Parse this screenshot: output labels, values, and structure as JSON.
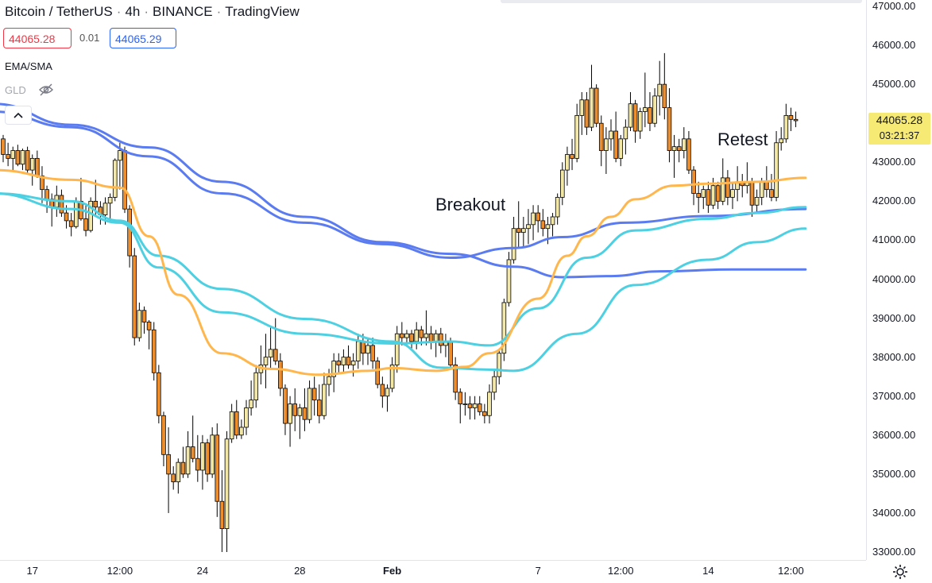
{
  "header": {
    "symbol": "Bitcoin / TetherUS",
    "interval": "4h",
    "exchange": "BINANCE",
    "source": "TradingView",
    "sell_price": "44065.28",
    "spread": "0.01",
    "buy_price": "44065.29"
  },
  "indicators": [
    {
      "label": "EMA/SMA"
    },
    {
      "label": "GLD"
    }
  ],
  "current_price": {
    "price": "44065.28",
    "countdown": "03:21:37"
  },
  "annotations": {
    "breakout": "Breakout",
    "retest": "Retest"
  },
  "colors": {
    "up_candle": "#f3e7a6",
    "down_candle": "#ee8d2c",
    "ema_orange": "#ffb74d",
    "ema_teal": "#4dd0e1",
    "sma_blue": "#5b7cf0",
    "price_label_bg": "#f6ea74"
  },
  "chart_data": {
    "type": "candlestick",
    "title": "Bitcoin / TetherUS · 4h · BINANCE",
    "ylim": [
      33000,
      47000
    ],
    "yticks": [
      "47000.00",
      "46000.00",
      "45000.00",
      "44000.00",
      "43000.00",
      "42000.00",
      "41000.00",
      "40000.00",
      "39000.00",
      "38000.00",
      "37000.00",
      "36000.00",
      "35000.00",
      "34000.00",
      "33000.00"
    ],
    "xticks": [
      {
        "label": "17",
        "i": 6
      },
      {
        "label": "12:00",
        "i": 24
      },
      {
        "label": "24",
        "i": 41
      },
      {
        "label": "28",
        "i": 61
      },
      {
        "label": "Feb",
        "i": 80,
        "bold": true
      },
      {
        "label": "7",
        "i": 110
      },
      {
        "label": "12:00",
        "i": 127
      },
      {
        "label": "14",
        "i": 145
      },
      {
        "label": "12:00",
        "i": 162
      }
    ],
    "candles": [
      [
        43600,
        43700,
        43000,
        43200
      ],
      [
        43200,
        43500,
        42900,
        43100
      ],
      [
        43100,
        43400,
        42800,
        43300
      ],
      [
        43300,
        43450,
        42900,
        42950
      ],
      [
        42950,
        43350,
        42800,
        43300
      ],
      [
        43300,
        43400,
        42700,
        42800
      ],
      [
        42800,
        43200,
        42400,
        43100
      ],
      [
        43100,
        43300,
        42600,
        42650
      ],
      [
        42650,
        42900,
        41950,
        42300
      ],
      [
        42300,
        42400,
        41700,
        42050
      ],
      [
        42050,
        42200,
        41350,
        41850
      ],
      [
        41850,
        42400,
        41600,
        42150
      ],
      [
        42150,
        42300,
        41600,
        41700
      ],
      [
        41700,
        41900,
        41300,
        41500
      ],
      [
        41500,
        41700,
        41100,
        41350
      ],
      [
        41350,
        42100,
        41300,
        42000
      ],
      [
        42000,
        42600,
        41500,
        41550
      ],
      [
        41550,
        41900,
        41100,
        41250
      ],
      [
        41250,
        42100,
        41200,
        42000
      ],
      [
        42000,
        42550,
        41600,
        41850
      ],
      [
        41850,
        42000,
        41400,
        41650
      ],
      [
        41650,
        42100,
        41400,
        41950
      ],
      [
        41950,
        42200,
        41500,
        42100
      ],
      [
        42100,
        43100,
        42000,
        43050
      ],
      [
        43050,
        43500,
        42300,
        43300
      ],
      [
        43300,
        43400,
        41700,
        41800
      ],
      [
        41800,
        41900,
        40300,
        40600
      ],
      [
        40600,
        40800,
        38300,
        38500
      ],
      [
        38500,
        39400,
        38400,
        39200
      ],
      [
        39200,
        39300,
        38600,
        38900
      ],
      [
        38900,
        38950,
        38200,
        38700
      ],
      [
        38700,
        38900,
        37400,
        37600
      ],
      [
        37600,
        37800,
        36300,
        36500
      ],
      [
        36500,
        36600,
        35200,
        35500
      ],
      [
        35500,
        36200,
        34000,
        35000
      ],
      [
        35000,
        35200,
        34600,
        34800
      ],
      [
        34800,
        35400,
        34500,
        35300
      ],
      [
        35300,
        35700,
        34900,
        35000
      ],
      [
        35000,
        36100,
        34900,
        35700
      ],
      [
        35700,
        36500,
        35300,
        35400
      ],
      [
        35400,
        36000,
        34800,
        35100
      ],
      [
        35100,
        36000,
        34600,
        35800
      ],
      [
        35800,
        35900,
        34800,
        35000
      ],
      [
        35000,
        36200,
        34900,
        36000
      ],
      [
        36000,
        36300,
        33900,
        34300
      ],
      [
        34300,
        35100,
        33000,
        33600
      ],
      [
        33600,
        36100,
        33000,
        35900
      ],
      [
        35900,
        36800,
        35800,
        36600
      ],
      [
        36600,
        36900,
        35900,
        36000
      ],
      [
        36000,
        36400,
        35900,
        36200
      ],
      [
        36200,
        36900,
        36000,
        36700
      ],
      [
        36700,
        37400,
        36500,
        36900
      ],
      [
        36900,
        37800,
        36700,
        37600
      ],
      [
        37600,
        38300,
        37300,
        37800
      ],
      [
        37800,
        38600,
        37200,
        38000
      ],
      [
        38000,
        38800,
        37700,
        38200
      ],
      [
        38200,
        39000,
        37800,
        37900
      ],
      [
        37900,
        38100,
        37000,
        37200
      ],
      [
        37200,
        37300,
        36000,
        36300
      ],
      [
        36300,
        37000,
        35700,
        36800
      ],
      [
        36800,
        37200,
        36100,
        36500
      ],
      [
        36500,
        36800,
        35900,
        36700
      ],
      [
        36700,
        37200,
        36100,
        36400
      ],
      [
        36400,
        37400,
        36300,
        37200
      ],
      [
        37200,
        37500,
        36500,
        36900
      ],
      [
        36900,
        37300,
        36300,
        36500
      ],
      [
        36500,
        37600,
        36400,
        37300
      ],
      [
        37300,
        37700,
        37000,
        37500
      ],
      [
        37500,
        38100,
        37100,
        37900
      ],
      [
        37900,
        38100,
        37600,
        37800
      ],
      [
        37800,
        38200,
        37600,
        38000
      ],
      [
        38000,
        38300,
        37700,
        37800
      ],
      [
        37800,
        38100,
        37500,
        37900
      ],
      [
        37900,
        38600,
        37700,
        38400
      ],
      [
        38400,
        38600,
        37800,
        38100
      ],
      [
        38100,
        38500,
        37800,
        38300
      ],
      [
        38300,
        38500,
        37700,
        37900
      ],
      [
        37900,
        38000,
        37200,
        37300
      ],
      [
        37300,
        37500,
        36700,
        37000
      ],
      [
        37000,
        37300,
        36600,
        37200
      ],
      [
        37200,
        38000,
        37100,
        37800
      ],
      [
        37800,
        38800,
        37600,
        38600
      ],
      [
        38600,
        38900,
        38300,
        38500
      ],
      [
        38500,
        38700,
        38300,
        38600
      ],
      [
        38600,
        38700,
        38200,
        38400
      ],
      [
        38400,
        38900,
        38200,
        38700
      ],
      [
        38700,
        38800,
        38300,
        38500
      ],
      [
        38500,
        39200,
        38300,
        38600
      ],
      [
        38600,
        38800,
        38200,
        38400
      ],
      [
        38400,
        38700,
        38000,
        38600
      ],
      [
        38600,
        38750,
        38100,
        38300
      ],
      [
        38300,
        38600,
        38000,
        38400
      ],
      [
        38400,
        38500,
        37700,
        37800
      ],
      [
        37800,
        38000,
        36900,
        37100
      ],
      [
        37100,
        37200,
        36300,
        36800
      ],
      [
        36800,
        37100,
        36500,
        36800
      ],
      [
        36800,
        37000,
        36400,
        36700
      ],
      [
        36700,
        37000,
        36400,
        36800
      ],
      [
        36800,
        37000,
        36500,
        36600
      ],
      [
        36600,
        36800,
        36300,
        36500
      ],
      [
        36500,
        37300,
        36300,
        37100
      ],
      [
        37100,
        37700,
        36900,
        37500
      ],
      [
        37500,
        38200,
        37300,
        38100
      ],
      [
        38100,
        39500,
        37900,
        39400
      ],
      [
        39400,
        40700,
        39300,
        40500
      ],
      [
        40500,
        41600,
        40400,
        41300
      ],
      [
        41300,
        42000,
        40800,
        41200
      ],
      [
        41200,
        41600,
        40800,
        41300
      ],
      [
        41300,
        41800,
        40900,
        41400
      ],
      [
        41400,
        41900,
        41000,
        41700
      ],
      [
        41700,
        41900,
        41200,
        41500
      ],
      [
        41500,
        41800,
        41100,
        41300
      ],
      [
        41300,
        41600,
        40900,
        41400
      ],
      [
        41400,
        41700,
        41100,
        41600
      ],
      [
        41600,
        42200,
        41400,
        42100
      ],
      [
        42100,
        43000,
        41900,
        42800
      ],
      [
        42800,
        43400,
        42400,
        43200
      ],
      [
        43200,
        43600,
        42800,
        43100
      ],
      [
        43100,
        44500,
        43000,
        44200
      ],
      [
        44200,
        44800,
        43700,
        44600
      ],
      [
        44600,
        44800,
        43700,
        43900
      ],
      [
        43900,
        45500,
        43800,
        44900
      ],
      [
        44900,
        45000,
        43900,
        44000
      ],
      [
        44000,
        44200,
        42900,
        43300
      ],
      [
        43300,
        43900,
        42700,
        43600
      ],
      [
        43600,
        44100,
        43300,
        43800
      ],
      [
        43800,
        44300,
        43000,
        43100
      ],
      [
        43100,
        43700,
        42900,
        43600
      ],
      [
        43600,
        44100,
        43200,
        43900
      ],
      [
        43900,
        44800,
        43800,
        44500
      ],
      [
        44500,
        44600,
        43500,
        43800
      ],
      [
        43800,
        44400,
        43600,
        44300
      ],
      [
        44300,
        45300,
        43900,
        44400
      ],
      [
        44400,
        44800,
        43800,
        44000
      ],
      [
        44000,
        44900,
        43900,
        44700
      ],
      [
        44700,
        45600,
        44200,
        45000
      ],
      [
        45000,
        45800,
        44100,
        44400
      ],
      [
        44400,
        44900,
        43000,
        43300
      ],
      [
        43300,
        43700,
        42600,
        43400
      ],
      [
        43400,
        43600,
        43000,
        43300
      ],
      [
        43300,
        43900,
        43100,
        43600
      ],
      [
        43600,
        43800,
        42700,
        42800
      ],
      [
        42800,
        42900,
        41900,
        42200
      ],
      [
        42200,
        42500,
        41700,
        42100
      ],
      [
        42100,
        42400,
        41800,
        42300
      ],
      [
        42300,
        42500,
        41700,
        41900
      ],
      [
        41900,
        42600,
        41800,
        42400
      ],
      [
        42400,
        42500,
        41800,
        42000
      ],
      [
        42000,
        43100,
        41900,
        42600
      ],
      [
        42600,
        42800,
        41900,
        42100
      ],
      [
        42100,
        42500,
        41800,
        42300
      ],
      [
        42300,
        42900,
        42000,
        42500
      ],
      [
        42500,
        42700,
        42100,
        42400
      ],
      [
        42400,
        43000,
        42200,
        42500
      ],
      [
        42500,
        42600,
        41600,
        41900
      ],
      [
        41900,
        42300,
        41700,
        42100
      ],
      [
        42100,
        42600,
        41900,
        42500
      ],
      [
        42500,
        42900,
        42100,
        42300
      ],
      [
        42300,
        42700,
        42000,
        42100
      ],
      [
        42100,
        43800,
        42000,
        43500
      ],
      [
        43500,
        43900,
        43300,
        43600
      ],
      [
        43600,
        44500,
        43500,
        44200
      ],
      [
        44200,
        44400,
        43800,
        44100
      ],
      [
        44100,
        44300,
        43900,
        44065.28
      ]
    ],
    "series": [
      {
        "style": "sma_blue",
        "points": [
          [
            -2,
            44500
          ],
          [
            14,
            43960
          ],
          [
            30,
            43380
          ],
          [
            45,
            42500
          ],
          [
            62,
            41600
          ],
          [
            78,
            40950
          ],
          [
            92,
            40650
          ],
          [
            105,
            40320
          ],
          [
            115,
            40050
          ],
          [
            125,
            40080
          ],
          [
            135,
            40200
          ],
          [
            150,
            40250
          ],
          [
            165,
            40250
          ]
        ]
      },
      {
        "style": "sma_blue",
        "points": [
          [
            -2,
            44300
          ],
          [
            14,
            43900
          ],
          [
            30,
            43150
          ],
          [
            45,
            42200
          ],
          [
            62,
            41450
          ],
          [
            78,
            40900
          ],
          [
            92,
            40550
          ],
          [
            105,
            40800
          ],
          [
            115,
            41080
          ],
          [
            128,
            41450
          ],
          [
            145,
            41620
          ],
          [
            165,
            41800
          ]
        ]
      },
      {
        "style": "ema_teal",
        "points": [
          [
            -2,
            42200
          ],
          [
            14,
            42000
          ],
          [
            24,
            41500
          ],
          [
            32,
            40600
          ],
          [
            45,
            39750
          ],
          [
            62,
            38980
          ],
          [
            80,
            38400
          ],
          [
            90,
            37730
          ],
          [
            100,
            37680
          ],
          [
            105,
            37650
          ],
          [
            118,
            38600
          ],
          [
            130,
            39850
          ],
          [
            145,
            40500
          ],
          [
            155,
            40950
          ],
          [
            165,
            41300
          ]
        ]
      },
      {
        "style": "ema_teal",
        "points": [
          [
            -2,
            42200
          ],
          [
            14,
            41800
          ],
          [
            24,
            41450
          ],
          [
            32,
            40300
          ],
          [
            45,
            39150
          ],
          [
            62,
            38600
          ],
          [
            80,
            38350
          ],
          [
            92,
            38400
          ],
          [
            100,
            38300
          ],
          [
            110,
            39250
          ],
          [
            120,
            40550
          ],
          [
            130,
            41250
          ],
          [
            145,
            41550
          ],
          [
            155,
            41700
          ],
          [
            165,
            41850
          ]
        ]
      },
      {
        "style": "ema_orange",
        "points": [
          [
            -2,
            42800
          ],
          [
            14,
            42550
          ],
          [
            24,
            42350
          ],
          [
            30,
            41100
          ],
          [
            36,
            39600
          ],
          [
            45,
            38100
          ],
          [
            55,
            37700
          ],
          [
            65,
            37550
          ],
          [
            75,
            37650
          ],
          [
            80,
            37720
          ],
          [
            89,
            37650
          ],
          [
            95,
            37750
          ],
          [
            100,
            38100
          ],
          [
            110,
            39500
          ],
          [
            116,
            40600
          ],
          [
            120,
            41100
          ],
          [
            125,
            41600
          ],
          [
            130,
            42050
          ],
          [
            138,
            42400
          ],
          [
            145,
            42450
          ],
          [
            155,
            42500
          ],
          [
            165,
            42600
          ]
        ]
      }
    ]
  }
}
